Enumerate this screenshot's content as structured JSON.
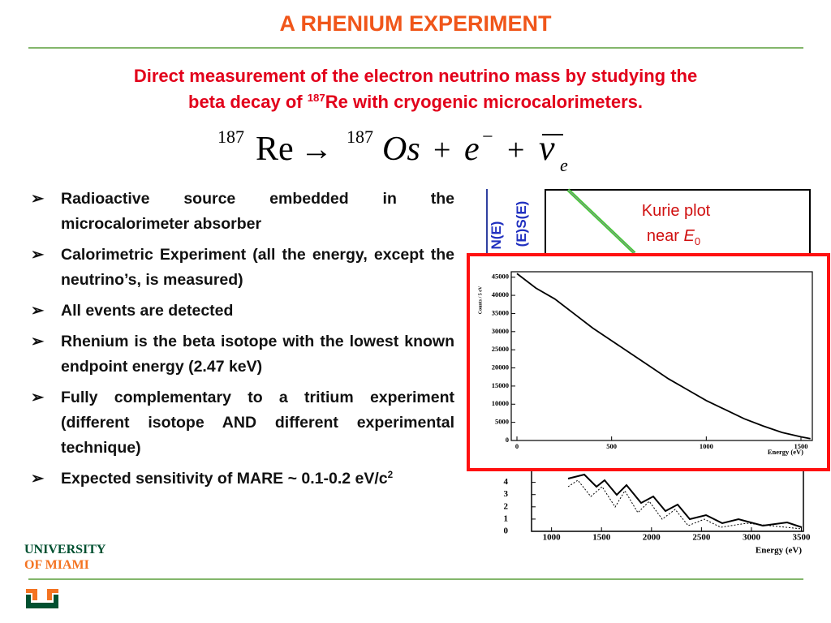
{
  "header": {
    "title": "A RHENIUM EXPERIMENT",
    "subtitle_line1": "Direct measurement of the electron neutrino mass by studying the",
    "subtitle_line2_start": "beta decay of ",
    "subtitle_superscript": "187",
    "subtitle_line2_end": "Re with cryogenic microcalorimeters."
  },
  "equation": {
    "left_mass": "187",
    "left_symbol": "Re",
    "arrow": "→",
    "right_mass": "187",
    "right_symbol": "Os",
    "plus": "+",
    "electron": "e",
    "electron_charge": "−",
    "neutrino": "ν",
    "neutrino_subscript": "e"
  },
  "bullet_marker": "➢",
  "bullets": [
    {
      "text": "Radioactive source embedded in the microcalorimeter absorber"
    },
    {
      "text": "Calorimetric Experiment (all the energy, except the neutrino’s, is measured)"
    },
    {
      "text": "All events are detected"
    },
    {
      "text": "Rhenium is the beta isotope with the lowest known endpoint energy (2.47 keV)"
    },
    {
      "text": "Fully complementary to a tritium experiment (different isotope AND different experimental technique)"
    },
    {
      "text": "Expected sensitivity of MARE ~ 0.1-0.2 eV/c",
      "superscript": "2"
    }
  ],
  "figures": {
    "kurie": {
      "ylabel_1": "N(E)",
      "ylabel_2": "(E)S(E)",
      "annotation_1": "Kurie plot",
      "annotation_2": "near ",
      "annotation_symbol": "E",
      "annotation_subscript": "0"
    },
    "spectrum": {
      "type": "line",
      "x": [
        0,
        100,
        200,
        300,
        400,
        500,
        600,
        700,
        800,
        900,
        1000,
        1100,
        1200,
        1300,
        1400,
        1500,
        1550
      ],
      "values": [
        46000,
        42000,
        39000,
        35000,
        31000,
        27500,
        24000,
        20500,
        17000,
        14000,
        11000,
        8500,
        6000,
        4000,
        2200,
        1000,
        500
      ],
      "color": "#000000",
      "xlim": [
        -30,
        1560
      ],
      "ylim": [
        0,
        46500
      ],
      "xticks": [
        0,
        500,
        1000,
        1500
      ],
      "yticks": [
        0,
        5000,
        10000,
        15000,
        20000,
        25000,
        30000,
        35000,
        40000,
        45000
      ],
      "xlabel": "Energy (eV)",
      "ylabel": "Counts / 5 eV"
    },
    "residual": {
      "xlim": [
        800,
        3520
      ],
      "ylim": [
        0,
        5.3
      ],
      "xticks": [
        1000,
        1500,
        2000,
        2500,
        3000,
        3500
      ],
      "yticks": [
        0,
        1,
        2,
        3,
        4
      ],
      "xlabel": "Energy (eV)"
    }
  },
  "logo": {
    "line1": "UNIVERSITY",
    "line2": "OF MIAMI"
  }
}
